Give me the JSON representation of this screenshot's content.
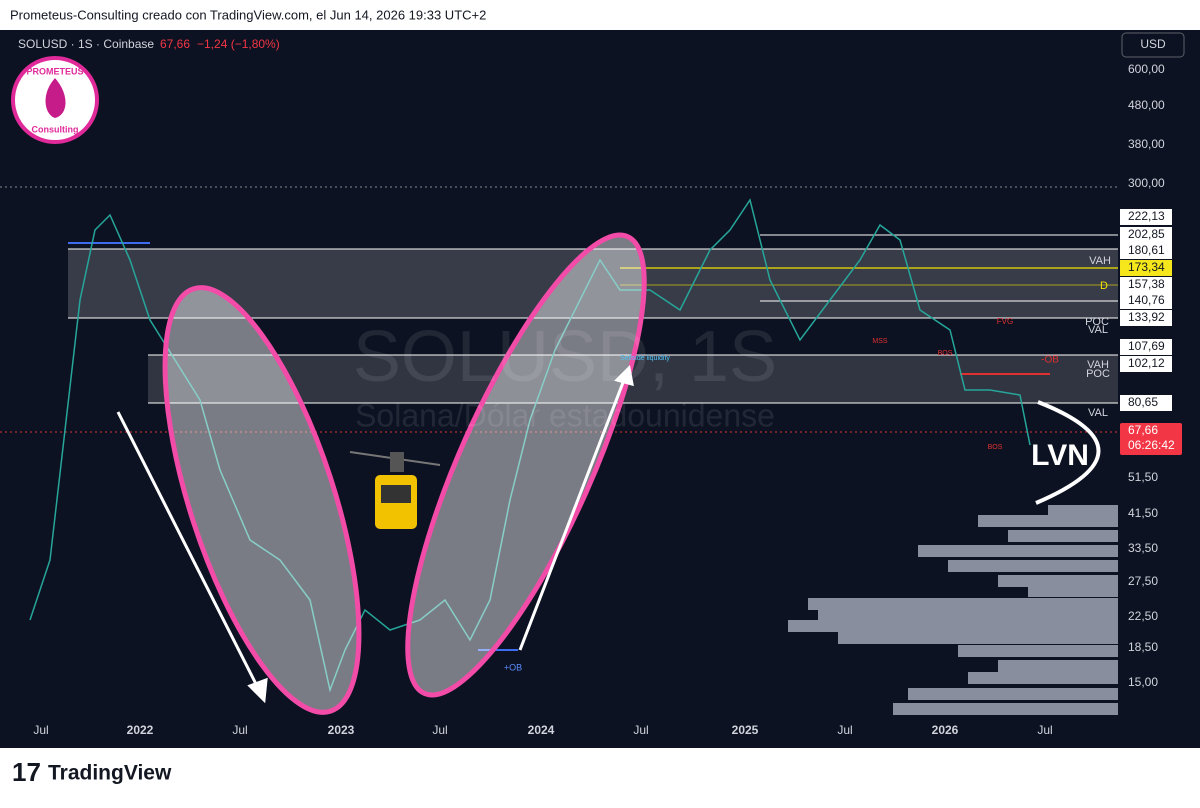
{
  "header": {
    "text": "Prometeus-Consulting creado con TradingView.com, el Jun 14, 2026 19:33 UTC+2"
  },
  "symbol": {
    "name": "SOLUSD · 1S · Coinbase",
    "price": "67,66",
    "change": "−1,24 (−1,80%)"
  },
  "currency": "USD",
  "logo": {
    "top": "PROMETEUS",
    "bottom": "Consulting"
  },
  "watermark": {
    "symbol": "SOLUSD, 1S",
    "description": "Solana/Dólar estadounidense"
  },
  "price_axis": [
    "600,00",
    "480,00",
    "380,00",
    "300,00",
    "51,50",
    "41,50",
    "33,50",
    "27,50",
    "22,50",
    "18,50",
    "15,00"
  ],
  "level_tags": [
    "222,13",
    "202,85",
    "180,61",
    "173,34",
    "157,38",
    "140,76",
    "133,92",
    "107,69",
    "102,12",
    "80,65"
  ],
  "last_price": {
    "price": "67,66",
    "countdown": "06:26:42"
  },
  "time_axis": [
    "Jul",
    "2022",
    "Jul",
    "2023",
    "Jul",
    "2024",
    "Jul",
    "2025",
    "Jul",
    "2026",
    "Jul"
  ],
  "annotations": [
    "LVN",
    "VAH",
    "D",
    "POC",
    "VAL",
    "FVG",
    "MSS",
    "BOS",
    "-OB",
    "+OB",
    "VAH",
    "POC",
    "VAL",
    "BOS",
    "Sellside liquidity"
  ],
  "footer": {
    "brand": "TradingView"
  }
}
